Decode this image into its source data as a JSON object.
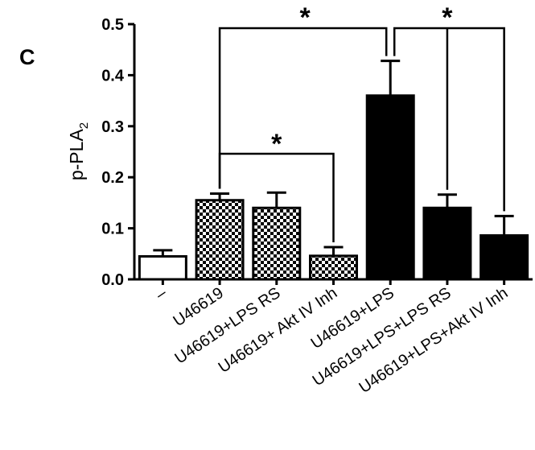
{
  "panel_label": "C",
  "chart_data": {
    "type": "bar",
    "title": "",
    "xlabel": "",
    "ylabel": "p-PLA",
    "ylabel_subscript": "2",
    "ylim": [
      0,
      0.5
    ],
    "yticks": [
      "0.0",
      "0.1",
      "0.2",
      "0.3",
      "0.4",
      "0.5"
    ],
    "grid": false,
    "legend": "none",
    "categories": [
      "–",
      "U46619",
      "U46619+LPS RS",
      "U46619+ Akt IV Inh",
      "U46619+LPS",
      "U46619+LPS+LPS RS",
      "U46619+LPS+Akt IV Inh"
    ],
    "values": [
      0.045,
      0.155,
      0.14,
      0.046,
      0.36,
      0.14,
      0.086
    ],
    "errors": [
      0.012,
      0.013,
      0.03,
      0.017,
      0.068,
      0.026,
      0.038
    ],
    "fills": [
      "white",
      "checker",
      "checker",
      "checker",
      "black",
      "black",
      "black"
    ],
    "significance": [
      {
        "from": 1,
        "to": 4,
        "label": "*"
      },
      {
        "from": 4,
        "to": 5,
        "label": "*"
      },
      {
        "from": 4,
        "to": 6,
        "label": "*"
      },
      {
        "from": 1,
        "to": 3,
        "label": "*"
      }
    ],
    "colors": {
      "bar_dark": "#000000",
      "bar_light": "#ffffff",
      "axis": "#000000"
    }
  }
}
